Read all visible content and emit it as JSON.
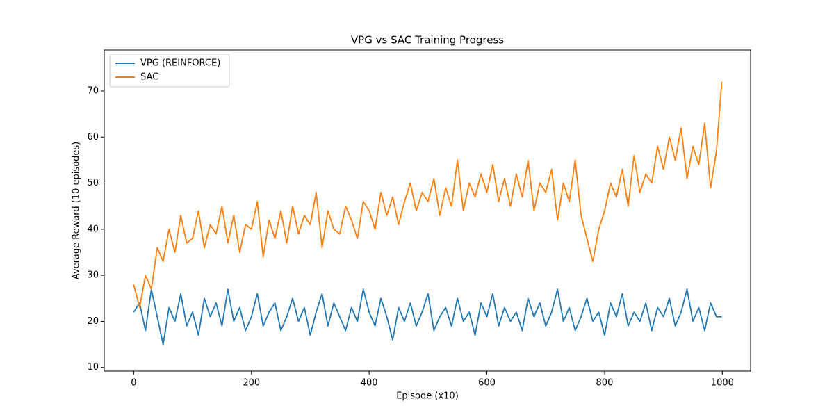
{
  "chart_data": {
    "type": "line",
    "title": "VPG vs SAC Training Progress",
    "x_label": "Episode (x10)",
    "y_label": "Average Reward (10 episodes)",
    "x": [
      0,
      10,
      20,
      30,
      40,
      50,
      60,
      70,
      80,
      90,
      100,
      110,
      120,
      130,
      140,
      150,
      160,
      170,
      180,
      190,
      200,
      210,
      220,
      230,
      240,
      250,
      260,
      270,
      280,
      290,
      300,
      310,
      320,
      330,
      340,
      350,
      360,
      370,
      380,
      390,
      400,
      410,
      420,
      430,
      440,
      450,
      460,
      470,
      480,
      490,
      500,
      510,
      520,
      530,
      540,
      550,
      560,
      570,
      580,
      590,
      600,
      610,
      620,
      630,
      640,
      650,
      660,
      670,
      680,
      690,
      700,
      710,
      720,
      730,
      740,
      750,
      760,
      770,
      780,
      790,
      800,
      810,
      820,
      830,
      840,
      850,
      860,
      870,
      880,
      890,
      900,
      910,
      920,
      930,
      940,
      950,
      960,
      970,
      980,
      990,
      999
    ],
    "series": [
      {
        "name": "VPG (REINFORCE)",
        "color": "#1f77b4",
        "values": [
          22,
          24,
          18,
          27,
          21,
          15,
          23,
          20,
          26,
          19,
          22,
          17,
          25,
          21,
          24,
          19,
          27,
          20,
          23,
          18,
          21,
          26,
          19,
          22,
          24,
          18,
          21,
          25,
          20,
          23,
          17,
          22,
          26,
          19,
          24,
          21,
          18,
          23,
          20,
          27,
          22,
          19,
          25,
          21,
          16,
          23,
          20,
          24,
          19,
          22,
          26,
          18,
          21,
          23,
          19,
          25,
          20,
          22,
          17,
          24,
          21,
          26,
          19,
          23,
          20,
          22,
          18,
          25,
          21,
          24,
          19,
          22,
          27,
          20,
          23,
          18,
          21,
          25,
          20,
          22,
          17,
          24,
          21,
          26,
          19,
          22,
          20,
          24,
          18,
          23,
          21,
          25,
          19,
          22,
          27,
          20,
          23,
          18,
          24,
          21,
          21
        ]
      },
      {
        "name": "SAC",
        "color": "#ff7f0e",
        "values": [
          28,
          23,
          30,
          27,
          36,
          33,
          40,
          35,
          43,
          37,
          38,
          44,
          36,
          41,
          39,
          45,
          37,
          43,
          35,
          41,
          40,
          46,
          34,
          42,
          38,
          44,
          37,
          45,
          39,
          43,
          41,
          48,
          36,
          44,
          40,
          39,
          45,
          42,
          38,
          46,
          44,
          40,
          48,
          43,
          47,
          41,
          46,
          50,
          44,
          48,
          46,
          51,
          43,
          49,
          45,
          55,
          44,
          50,
          47,
          52,
          48,
          54,
          46,
          51,
          45,
          52,
          47,
          55,
          44,
          50,
          48,
          53,
          42,
          50,
          46,
          55,
          43,
          38,
          33,
          40,
          44,
          50,
          47,
          53,
          45,
          56,
          48,
          52,
          50,
          58,
          53,
          60,
          55,
          62,
          51,
          58,
          54,
          63,
          49,
          57,
          72
        ]
      }
    ],
    "xlim": [
      -50,
      1048
    ],
    "ylim": [
      9.2,
      78.9
    ],
    "xticks": [
      0,
      200,
      400,
      600,
      800,
      1000
    ],
    "yticks": [
      10,
      20,
      30,
      40,
      50,
      60,
      70
    ],
    "legend": "upper left"
  }
}
